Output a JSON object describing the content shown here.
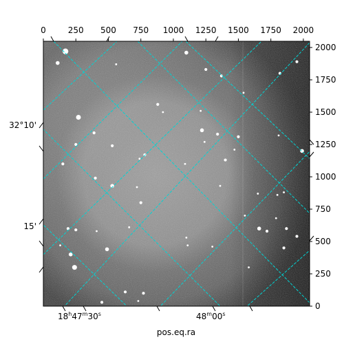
{
  "chart_data": {
    "type": "image",
    "title": "",
    "xlabel": "pos.eq.ra",
    "ylabel": "",
    "pixel_axes": {
      "top_ticks": [
        0,
        250,
        500,
        750,
        1000,
        1250,
        1500,
        1750,
        2000
      ],
      "top_tick_labels": [
        "0",
        "250",
        "500",
        "750",
        "1000",
        "1250",
        "1500",
        "1750",
        "2000"
      ],
      "right_ticks": [
        0,
        250,
        500,
        750,
        1000,
        1250,
        1500,
        1750,
        2000
      ],
      "right_tick_labels": [
        "0",
        "250",
        "500",
        "750",
        "1000",
        "1250",
        "1500",
        "1750",
        "2000"
      ],
      "xlim": [
        0,
        2048
      ],
      "ylim": [
        0,
        2048
      ]
    },
    "world_axes": {
      "ra_ticks": [
        {
          "label_main": "18",
          "label_h": "h",
          "label_mid": "47",
          "label_m": "m",
          "label_end": "30",
          "label_s": "s"
        },
        {
          "label_main": "48",
          "label_h": "",
          "label_mid": "",
          "label_m": "m",
          "label_end": "00",
          "label_s": "s"
        }
      ],
      "dec_tick_labels": [
        "32°10'",
        "15'"
      ]
    },
    "grid": true,
    "grid_color": "#00d4d4",
    "colormap": "gray",
    "stars": [
      [
        170,
        1970,
        6
      ],
      [
        110,
        1880,
        4
      ],
      [
        1100,
        1960,
        4
      ],
      [
        1250,
        1830,
        3
      ],
      [
        1820,
        1800,
        3
      ],
      [
        1370,
        1780,
        3
      ],
      [
        1950,
        1890,
        3
      ],
      [
        560,
        1870,
        2
      ],
      [
        270,
        1460,
        5
      ],
      [
        390,
        1340,
        3
      ],
      [
        250,
        1250,
        3
      ],
      [
        530,
        1240,
        3
      ],
      [
        880,
        1560,
        3
      ],
      [
        920,
        1500,
        2
      ],
      [
        1220,
        1360,
        4
      ],
      [
        1340,
        1330,
        3
      ],
      [
        1500,
        1310,
        3
      ],
      [
        1470,
        1210,
        2
      ],
      [
        1400,
        1130,
        3
      ],
      [
        1810,
        1320,
        2
      ],
      [
        1990,
        1200,
        4
      ],
      [
        780,
        1170,
        3
      ],
      [
        740,
        1140,
        2
      ],
      [
        1090,
        1100,
        2
      ],
      [
        1240,
        1270,
        2
      ],
      [
        400,
        990,
        3
      ],
      [
        530,
        930,
        4
      ],
      [
        720,
        920,
        2
      ],
      [
        750,
        800,
        3
      ],
      [
        1360,
        930,
        2
      ],
      [
        1650,
        870,
        2
      ],
      [
        1800,
        860,
        2
      ],
      [
        1850,
        880,
        2
      ],
      [
        1790,
        680,
        2
      ],
      [
        1550,
        700,
        2
      ],
      [
        1950,
        540,
        3
      ],
      [
        1660,
        600,
        4
      ],
      [
        1720,
        580,
        3
      ],
      [
        1870,
        600,
        3
      ],
      [
        1850,
        450,
        3
      ],
      [
        190,
        600,
        3
      ],
      [
        250,
        590,
        3
      ],
      [
        130,
        470,
        2
      ],
      [
        210,
        400,
        4
      ],
      [
        240,
        300,
        5
      ],
      [
        490,
        440,
        4
      ],
      [
        410,
        580,
        2
      ],
      [
        660,
        610,
        2
      ],
      [
        1100,
        530,
        2
      ],
      [
        1110,
        470,
        2
      ],
      [
        1300,
        460,
        2
      ],
      [
        1580,
        300,
        2
      ],
      [
        630,
        110,
        3
      ],
      [
        770,
        100,
        3
      ],
      [
        730,
        40,
        2
      ],
      [
        450,
        30,
        3
      ],
      [
        1210,
        1510,
        2
      ],
      [
        1540,
        1650,
        2
      ],
      [
        150,
        1100,
        3
      ]
    ]
  }
}
